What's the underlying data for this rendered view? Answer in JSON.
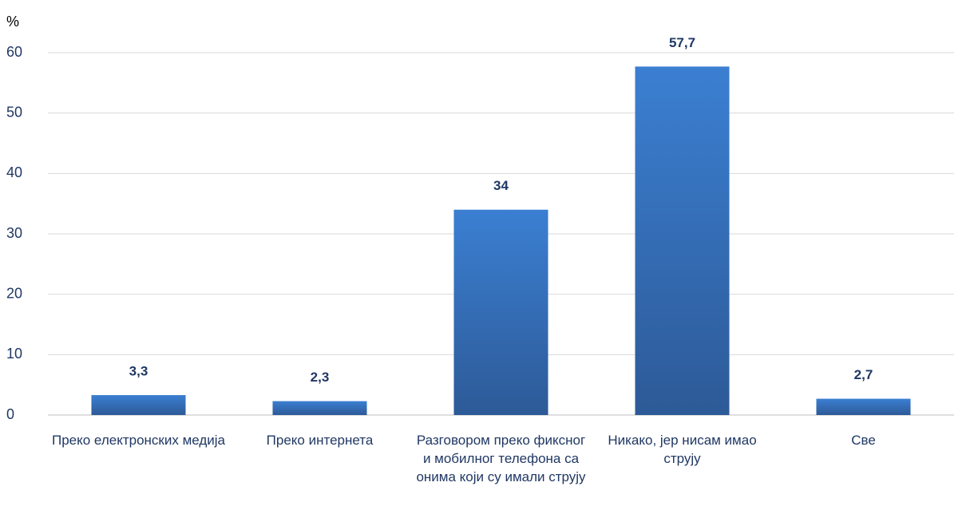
{
  "chart_data": {
    "type": "bar",
    "y_label": "%",
    "categories": [
      "Преко електронских медија",
      "Преко интернета",
      "Разговором преко фиксног и мобилног телефона са онима који су имали струју",
      "Никако, јер нисам имао струју",
      "Све"
    ],
    "values": [
      3.3,
      2.3,
      34,
      57.7,
      2.7
    ],
    "value_labels": [
      "3,3",
      "2,3",
      "34",
      "57,7",
      "2,7"
    ],
    "color": "#3b7fd2",
    "ylim": [
      0,
      60
    ],
    "yticks": [
      0,
      10,
      20,
      30,
      40,
      50,
      60
    ],
    "grid": true
  }
}
